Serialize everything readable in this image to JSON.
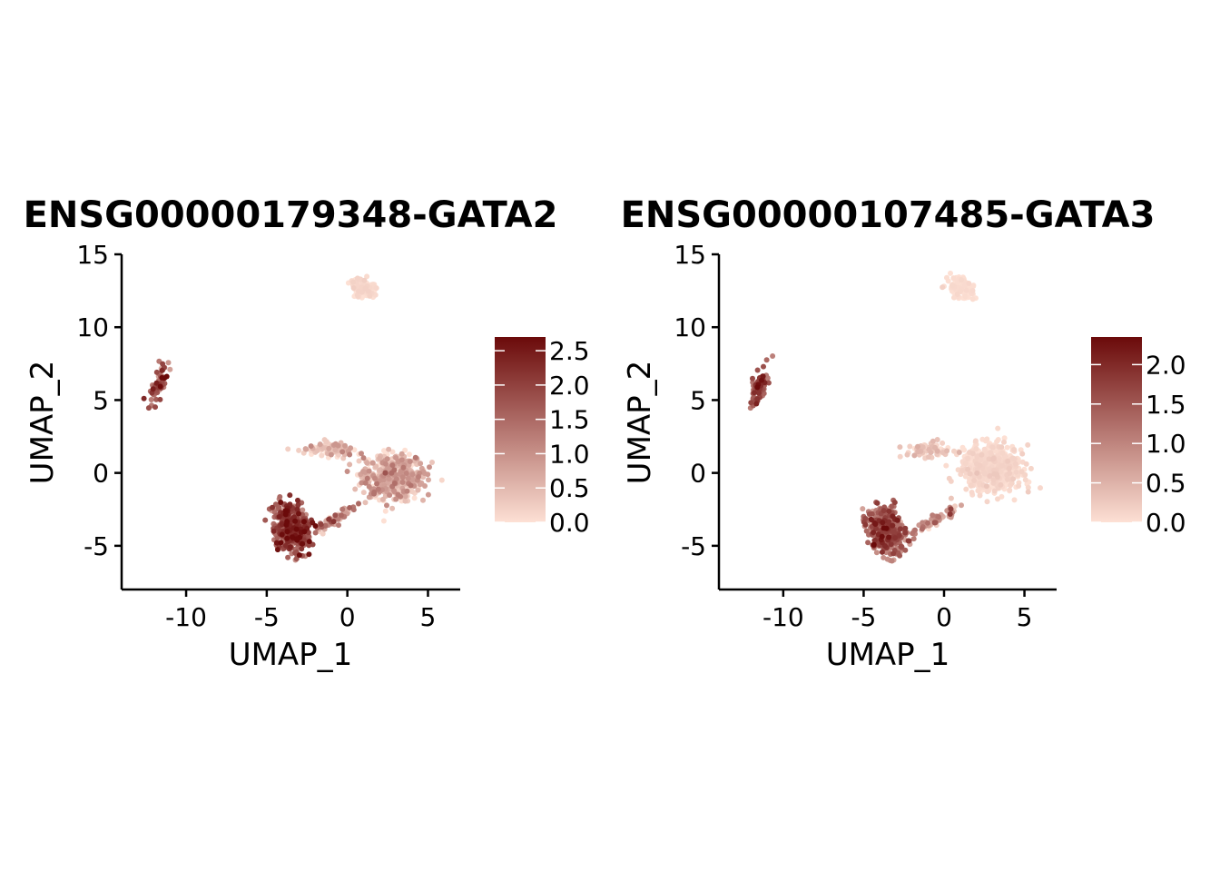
{
  "colors": {
    "low": "#fde0d4",
    "high": "#6b0a0a",
    "axis": "#000000",
    "background": "#ffffff"
  },
  "chart_data": [
    {
      "type": "scatter",
      "title": "ENSG00000179348-GATA2",
      "xlabel": "UMAP_1",
      "ylabel": "UMAP_2",
      "xlim": [
        -14,
        7
      ],
      "ylim": [
        -8,
        15
      ],
      "x_ticks": [
        -10,
        -5,
        0,
        5
      ],
      "x_tick_labels": [
        "-10",
        "-5",
        "0",
        "5"
      ],
      "y_ticks": [
        -5,
        0,
        5,
        10,
        15
      ],
      "y_tick_labels": [
        "-5",
        "0",
        "5",
        "10",
        "15"
      ],
      "grid": false,
      "legend": {
        "placement": "right",
        "type": "colorbar",
        "min": 0,
        "max": 2.7,
        "ticks": [
          0.0,
          0.5,
          1.0,
          1.5,
          2.0,
          2.5
        ],
        "tick_labels": [
          "0.0",
          "0.5",
          "1.0",
          "1.5",
          "2.0",
          "2.5"
        ]
      },
      "clusters": [
        {
          "cx": 1.0,
          "cy": 12.7,
          "sx": 0.8,
          "sy": 0.55,
          "rot": -35,
          "n": 110,
          "mean": 0.05,
          "spread": 0.08
        },
        {
          "cx": -11.7,
          "cy": 6.0,
          "sx": 0.35,
          "sy": 1.3,
          "rot": -15,
          "n": 70,
          "mean": 1.5,
          "spread": 0.55
        },
        {
          "cx": 2.8,
          "cy": -0.2,
          "sx": 1.7,
          "sy": 1.4,
          "rot": 0,
          "n": 520,
          "mean": 0.35,
          "spread": 0.45
        },
        {
          "cx": -1.0,
          "cy": 1.6,
          "sx": 1.3,
          "sy": 0.45,
          "rot": 0,
          "n": 80,
          "mean": 0.4,
          "spread": 0.4
        },
        {
          "cx": -0.8,
          "cy": -3.2,
          "sx": 1.5,
          "sy": 0.35,
          "rot": 35,
          "n": 60,
          "mean": 0.8,
          "spread": 0.5
        },
        {
          "cx": -3.4,
          "cy": -3.8,
          "sx": 0.9,
          "sy": 1.4,
          "rot": 15,
          "n": 480,
          "mean": 1.7,
          "spread": 0.55
        }
      ]
    },
    {
      "type": "scatter",
      "title": "ENSG00000107485-GATA3",
      "xlabel": "UMAP_1",
      "ylabel": "UMAP_2",
      "xlim": [
        -14,
        7
      ],
      "ylim": [
        -8,
        15
      ],
      "x_ticks": [
        -10,
        -5,
        0,
        5
      ],
      "x_tick_labels": [
        "-10",
        "-5",
        "0",
        "5"
      ],
      "y_ticks": [
        -5,
        0,
        5,
        10,
        15
      ],
      "y_tick_labels": [
        "-5",
        "0",
        "5",
        "10",
        "15"
      ],
      "grid": false,
      "legend": {
        "placement": "right",
        "type": "colorbar",
        "min": 0,
        "max": 2.35,
        "ticks": [
          0.0,
          0.5,
          1.0,
          1.5,
          2.0
        ],
        "tick_labels": [
          "0.0",
          "0.5",
          "1.0",
          "1.5",
          "2.0"
        ]
      },
      "clusters": [
        {
          "cx": 1.0,
          "cy": 12.7,
          "sx": 0.8,
          "sy": 0.55,
          "rot": -35,
          "n": 110,
          "mean": 0.02,
          "spread": 0.04
        },
        {
          "cx": -11.5,
          "cy": 5.8,
          "sx": 0.35,
          "sy": 1.3,
          "rot": -15,
          "n": 70,
          "mean": 1.5,
          "spread": 0.45
        },
        {
          "cx": 3.0,
          "cy": 0.3,
          "sx": 1.7,
          "sy": 1.4,
          "rot": 0,
          "n": 560,
          "mean": 0.05,
          "spread": 0.08
        },
        {
          "cx": -1.0,
          "cy": 1.6,
          "sx": 1.3,
          "sy": 0.45,
          "rot": 0,
          "n": 80,
          "mean": 0.15,
          "spread": 0.2
        },
        {
          "cx": -0.6,
          "cy": -3.3,
          "sx": 1.6,
          "sy": 0.35,
          "rot": 30,
          "n": 60,
          "mean": 0.7,
          "spread": 0.45
        },
        {
          "cx": -3.6,
          "cy": -3.9,
          "sx": 0.9,
          "sy": 1.4,
          "rot": 15,
          "n": 480,
          "mean": 1.2,
          "spread": 0.45
        }
      ]
    }
  ]
}
